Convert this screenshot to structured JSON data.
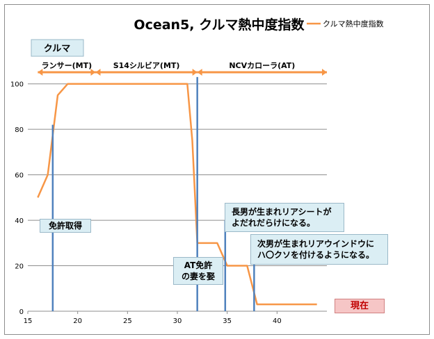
{
  "chart_data": {
    "type": "line",
    "title": "Ocean5, クルマ熱中度指数",
    "xlabel": "",
    "ylabel": "",
    "xlim": [
      15,
      45
    ],
    "ylim": [
      0,
      110
    ],
    "x_ticks": [
      15,
      20,
      25,
      30,
      35,
      40
    ],
    "y_ticks": [
      0,
      20,
      40,
      60,
      80,
      100
    ],
    "grid": true,
    "legend": "top-right",
    "series": [
      {
        "name": "クルマ熱中度指数",
        "color": "#f79646",
        "x": [
          16,
          17,
          18,
          19,
          20,
          25,
          31,
          31.5,
          32,
          34,
          35,
          37,
          38,
          40,
          44
        ],
        "y": [
          50,
          60,
          95,
          100,
          100,
          100,
          100,
          75,
          30,
          30,
          20,
          20,
          3,
          3,
          3
        ]
      }
    ],
    "vertical_markers": [
      {
        "x": 17.5,
        "y_top": 82,
        "label": "免許取得"
      },
      {
        "x": 32,
        "y_top": 103,
        "label_lines": [
          "AT免許",
          "の妻を娶"
        ]
      },
      {
        "x": 34.8,
        "y_top": 40,
        "label_lines": [
          "長男が生まれリアシートが",
          "よだれだらけになる。"
        ]
      },
      {
        "x": 37.7,
        "y_top": 28,
        "label_lines": [
          "次男が生まれリアウインドウに",
          "ハ〇クソを付けるようになる。"
        ]
      }
    ],
    "periods": [
      {
        "label": "ランサー(MT)",
        "start": 16,
        "end": 21.8
      },
      {
        "label": "S14シルビア(MT)",
        "start": 21.8,
        "end": 32
      },
      {
        "label": "NCVカローラ(AT)",
        "start": 32,
        "end": 45
      }
    ],
    "category_label": "クルマ",
    "now_label": "現在",
    "colors": {
      "line": "#f79646",
      "marker": "#4f81bd",
      "period_arrow": "#f79646",
      "callout_bg": "#dbeef4",
      "now_bg": "#f6c6c6",
      "now_text": "#c00000"
    }
  }
}
